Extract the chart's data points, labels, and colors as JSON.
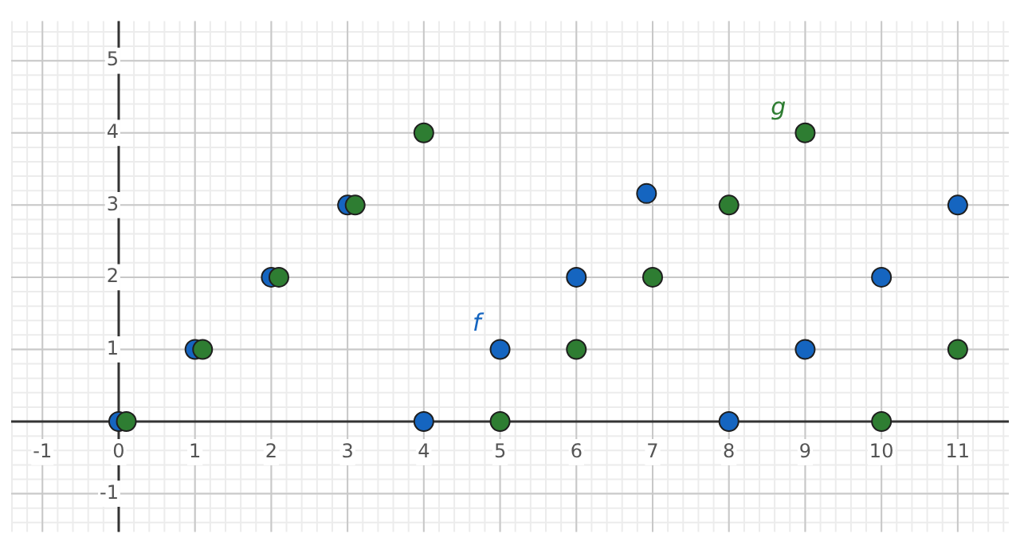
{
  "chart_data": {
    "type": "scatter",
    "xlim": [
      -1.41,
      11.67
    ],
    "ylim": [
      -1.53,
      5.55
    ],
    "xticks": [
      -1,
      0,
      1,
      2,
      3,
      4,
      5,
      6,
      7,
      8,
      9,
      10,
      11
    ],
    "yticks": [
      -1,
      1,
      2,
      3,
      4,
      5
    ],
    "grid": true,
    "legend": false,
    "marker": "circle",
    "series": [
      {
        "name": "f",
        "color": "#1565c0",
        "x": [
          0,
          1,
          2,
          3,
          4,
          5,
          6,
          6.92,
          8,
          9,
          10,
          11
        ],
        "values": [
          0,
          1,
          2,
          3,
          0,
          1,
          2,
          3.16,
          0,
          1,
          2,
          3
        ]
      },
      {
        "name": "g",
        "color": "#2e7d32",
        "x": [
          0.1,
          1.1,
          2.1,
          3.1,
          4,
          5,
          6,
          7,
          8,
          9,
          10,
          11
        ],
        "values": [
          0,
          1,
          2,
          3,
          4,
          0,
          1,
          2,
          3,
          4,
          0,
          1
        ]
      }
    ]
  }
}
